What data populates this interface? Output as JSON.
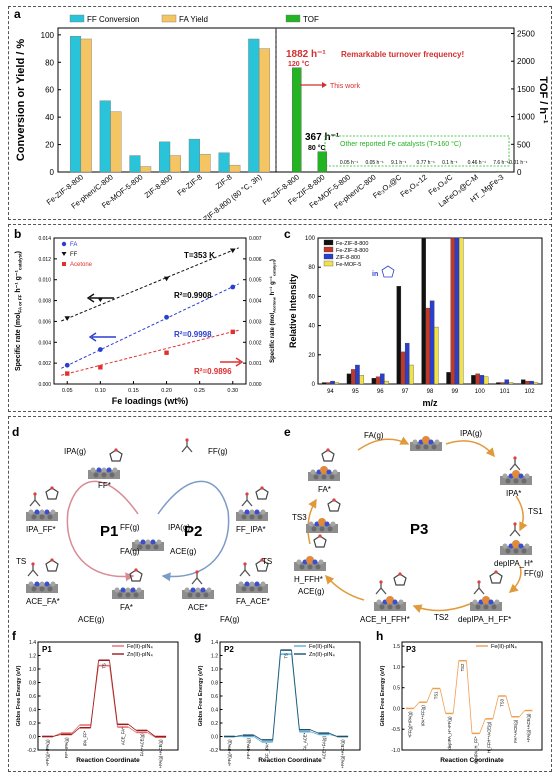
{
  "panel_letters": {
    "a": "a",
    "b": "b",
    "c": "c",
    "d": "d",
    "e": "e",
    "f": "f",
    "g": "g",
    "h": "h"
  },
  "chart_data": [
    {
      "id": "a-left",
      "type": "bar",
      "categories": [
        "Fe-ZIF-8-800",
        "Fe-phen/C-800",
        "Fe-MOF-5-800",
        "ZIF-8-800",
        "Fe-ZIF-8",
        "ZIF-8",
        "Fe-ZIF-8-800 (80 °C, 3h)"
      ],
      "series": [
        {
          "name": "FF Conversion",
          "color": "#29c4d9",
          "values": [
            99,
            52,
            12,
            22,
            24,
            14,
            97
          ]
        },
        {
          "name": "FA Yield",
          "color": "#f5c564",
          "values": [
            97,
            44,
            4,
            12,
            13,
            5,
            90
          ]
        }
      ],
      "ylabel": "Conversion or Yield / %",
      "ylim": [
        0,
        105
      ],
      "yticks": [
        0,
        20,
        40,
        60,
        80,
        100
      ]
    },
    {
      "id": "a-right",
      "type": "bar",
      "categories": [
        "Fe-ZIF-8-800",
        "Fe-ZIF-8-800",
        "Fe-MOF-5-800",
        "Fe-phen/C-800",
        "Fe₃O₄@C",
        "Fe₃O₄-12",
        "Fe₃O₄/C",
        "LaFeO₃@C-M",
        "HT_MgFe-3"
      ],
      "values": [
        1882,
        367,
        0.05,
        0.05,
        9.1,
        0.77,
        0.1,
        0.46,
        7.6
      ],
      "value_labels": [
        "",
        "",
        "0.05 h⁻¹",
        "0.05 h⁻¹",
        "9.1 h⁻¹",
        "0.77 h⁻¹",
        "0.1 h⁻¹",
        "0.46 h⁻¹",
        "7.6 h⁻¹"
      ],
      "last_label": "0.01 h⁻¹",
      "legend": "TOF",
      "color": "#22b422",
      "ylabel": "TOF / h⁻¹",
      "ylim": [
        0,
        2600
      ],
      "yticks": [
        0,
        500,
        1000,
        1500,
        2000,
        2500
      ],
      "annotations": {
        "tof1": "1882 h⁻¹",
        "temp1": "120 °C",
        "remark": "Remarkable turnover frequency!",
        "this_work": "This work",
        "tof2": "367 h⁻¹",
        "temp2": "80 °C",
        "other": "Other reported Fe catalysts (T>160 °C)"
      }
    },
    {
      "id": "b",
      "type": "scatter",
      "xlabel": "Fe loadings (wt%)",
      "ylabel_left": "Specific rate (mol",
      "ylabel_left_sub": "FA or FF",
      "ylabel_left_mid": " h⁻¹ g⁻¹",
      "ylabel_left_sub2": "catalyst",
      "ylabel_left_end": ")",
      "ylabel_right": "Specific rate (mol",
      "ylabel_right_sub": "Acetone",
      "ylabel_right_mid": " h⁻¹ g⁻¹",
      "ylabel_right_sub2": "catalyst",
      "ylabel_right_end": ")",
      "xlim": [
        0.03,
        0.32
      ],
      "xticks": [
        0.05,
        0.1,
        0.15,
        0.2,
        0.25,
        0.3
      ],
      "xtick_labels": [
        "0.05",
        "0.10",
        "0.15",
        "0.20",
        "0.25",
        "0.30"
      ],
      "ylim": [
        0,
        0.014
      ],
      "yticks": [
        0.0,
        0.002,
        0.004,
        0.006,
        0.008,
        0.01,
        0.012,
        0.014
      ],
      "ytick_labels": [
        "0.000",
        "0.002",
        "0.004",
        "0.006",
        "0.008",
        "0.010",
        "0.012",
        "0.014"
      ],
      "ylim_right": [
        0,
        0.007
      ],
      "yticks_right": [
        0.0,
        0.001,
        0.002,
        0.003,
        0.004,
        0.005,
        0.006,
        0.007
      ],
      "ytick_labels_right": [
        "0.000",
        "0.001",
        "0.002",
        "0.003",
        "0.004",
        "0.005",
        "0.006",
        "0.007"
      ],
      "temperature": "T=353 K",
      "series": [
        {
          "name": "FA",
          "axis": "left",
          "color": "#2a3fd0",
          "marker": "circle",
          "x": [
            0.05,
            0.1,
            0.2,
            0.3
          ],
          "y": [
            0.0018,
            0.0033,
            0.0064,
            0.0093
          ],
          "r2": "R²=0.9998"
        },
        {
          "name": "FF",
          "axis": "left",
          "color": "#111111",
          "marker": "triangle-down",
          "x": [
            0.05,
            0.1,
            0.2,
            0.3
          ],
          "y": [
            0.0063,
            0.0081,
            0.0101,
            0.0128
          ],
          "r2": "R²=0.9908"
        },
        {
          "name": "Acetone",
          "axis": "right",
          "color": "#e03030",
          "marker": "square",
          "x": [
            0.05,
            0.1,
            0.2,
            0.3
          ],
          "y": [
            0.0005,
            0.0008,
            0.0015,
            0.0025
          ],
          "r2": "R²=0.9896"
        }
      ]
    },
    {
      "id": "c",
      "type": "bar",
      "xlabel": "m/z",
      "ylabel": "Relative Intensity",
      "categories": [
        "94",
        "95",
        "96",
        "97",
        "98",
        "99",
        "100",
        "101",
        "102"
      ],
      "ylim": [
        0,
        100
      ],
      "yticks": [
        0,
        20,
        40,
        60,
        80,
        100
      ],
      "series": [
        {
          "name": "Fe-ZIF-8-800",
          "color": "#111111",
          "values": [
            1,
            7,
            4,
            67,
            100,
            8,
            6,
            1,
            3
          ]
        },
        {
          "name": "Fe-ZIF-8-800",
          "color": "#c0392b",
          "values": [
            1,
            10,
            5,
            22,
            52,
            100,
            7,
            1,
            2
          ]
        },
        {
          "name": "ZIF-8-800",
          "color": "#2a3fd0",
          "values": [
            2,
            13,
            7,
            28,
            57,
            100,
            6,
            3,
            2
          ]
        },
        {
          "name": "Fe-MOF-5",
          "color": "#f2e24a",
          "values": [
            1,
            6,
            2,
            13,
            39,
            100,
            5,
            1,
            1
          ]
        }
      ],
      "inset": "in"
    },
    {
      "id": "f",
      "type": "line",
      "panel": "P1",
      "ylabel": "Gibbs Free Energy (eV)",
      "xlabel": "Reaction Coordinate",
      "ylim": [
        -0.2,
        1.4
      ],
      "yticks": [
        -0.2,
        0.0,
        0.2,
        0.4,
        0.6,
        0.8,
        1.0,
        1.2,
        1.4
      ],
      "ytick_labels": [
        "-0.2",
        "0.0",
        "0.2",
        "0.4",
        "0.6",
        "0.8",
        "1.0",
        "1.2",
        "1.4"
      ],
      "states": [
        "+FF(g)+IPA(g)",
        "FF*+IPA(g)",
        "IPA_FF*",
        "TS",
        "ACE_FA*",
        "FA*+ACE(g)",
        "+FA(g)+ACE(g)"
      ],
      "series": [
        {
          "name": "Fe(II)-pIN₄",
          "color": "#e36b6b",
          "values": [
            0.0,
            0.05,
            0.17,
            1.05,
            0.14,
            0.06,
            -0.01
          ]
        },
        {
          "name": "Zn(II)-pIN₄",
          "color": "#9b1b1b",
          "values": [
            0.0,
            0.03,
            0.13,
            1.13,
            0.18,
            0.09,
            0.0
          ]
        }
      ]
    },
    {
      "id": "g",
      "type": "line",
      "panel": "P2",
      "ylabel": "Gibbs Free Energy (eV)",
      "xlabel": "Reaction Coordinate",
      "ylim": [
        -0.2,
        1.4
      ],
      "yticks": [
        -0.2,
        0.0,
        0.2,
        0.4,
        0.6,
        0.8,
        1.0,
        1.2,
        1.4
      ],
      "ytick_labels": [
        "-0.2",
        "0.0",
        "0.2",
        "0.4",
        "0.6",
        "0.8",
        "1.0",
        "1.2",
        "1.4"
      ],
      "states": [
        "+FF(g)+IPA(g)",
        "FF*+IPA(g)",
        "FF_IPA*",
        "TS",
        "FA_ACE*",
        "ACE*+FA(g)",
        "+FA(g)+ACE(g)"
      ],
      "series": [
        {
          "name": "Fe(II)-pIN₄",
          "color": "#5aaed8",
          "values": [
            0.0,
            0.0,
            -0.08,
            1.22,
            0.07,
            0.03,
            0.0
          ]
        },
        {
          "name": "Zn(II)-pIN₄",
          "color": "#1c4f6e",
          "values": [
            0.0,
            0.02,
            -0.05,
            1.28,
            0.1,
            0.05,
            0.0
          ]
        }
      ]
    },
    {
      "id": "h",
      "type": "line",
      "panel": "P3",
      "ylabel": "Gibbs Free Energy (eV)",
      "xlabel": "Reaction Coordinate",
      "ylim": [
        -1.0,
        1.6
      ],
      "yticks": [
        -1.0,
        -0.5,
        0.0,
        0.5,
        1.0,
        1.5
      ],
      "ytick_labels": [
        "-1.0",
        "-0.5",
        "0.0",
        "0.5",
        "1.0",
        "1.5"
      ],
      "states": [
        "+FF(g)+IPA(g)",
        "IPA*+FF(g)",
        "TS1",
        "depIPA_H*+FF(g)",
        "TS2",
        "depIPA_H_FF*",
        "H_FFH*+ACE(g)",
        "TS3",
        "FA*+ACE(g)",
        "+FA(g)+ACE(g)"
      ],
      "series": [
        {
          "name": "Fe(II)-pIN₄",
          "color": "#f0a050",
          "values": [
            0.0,
            0.15,
            0.48,
            -0.12,
            1.15,
            -0.6,
            -0.25,
            0.3,
            -0.2,
            -0.05
          ]
        }
      ]
    }
  ],
  "panel_d": {
    "cycle_labels": [
      "P1",
      "P2"
    ],
    "species": {
      "ff": "FF*",
      "ipa_ff": "IPA_FF*",
      "ace_fa": "ACE_FA*",
      "fa": "FA*",
      "ace": "ACE*",
      "fa_ace": "FA_ACE*",
      "ff_ipa": "FF_IPA*"
    },
    "gases": {
      "ipa1": "IPA(g)",
      "ff1": "FF(g)",
      "ff2": "FF(g)",
      "ipa2": "IPA(g)",
      "fa1": "FA(g)",
      "ace1": "ACE(g)",
      "ace2": "ACE(g)",
      "fa2": "FA(g)"
    },
    "ts": [
      "TS",
      "TS"
    ]
  },
  "panel_e": {
    "cycle_label": "P3",
    "species": {
      "fa": "FA*",
      "ipa": "IPA*",
      "depipa_h": "depIPA_H*",
      "depipa_h_ff": "depIPA_H_FF*",
      "ace_h_ffh": "ACE_H_FFH*",
      "h_ffh": "H_FFH*"
    },
    "gases": {
      "fa": "FA(g)",
      "ipa": "IPA(g)",
      "ff": "FF(g)",
      "ace": "ACE(g)"
    },
    "ts": {
      "ts1": "TS1",
      "ts2": "TS2",
      "ts3": "TS3"
    }
  }
}
